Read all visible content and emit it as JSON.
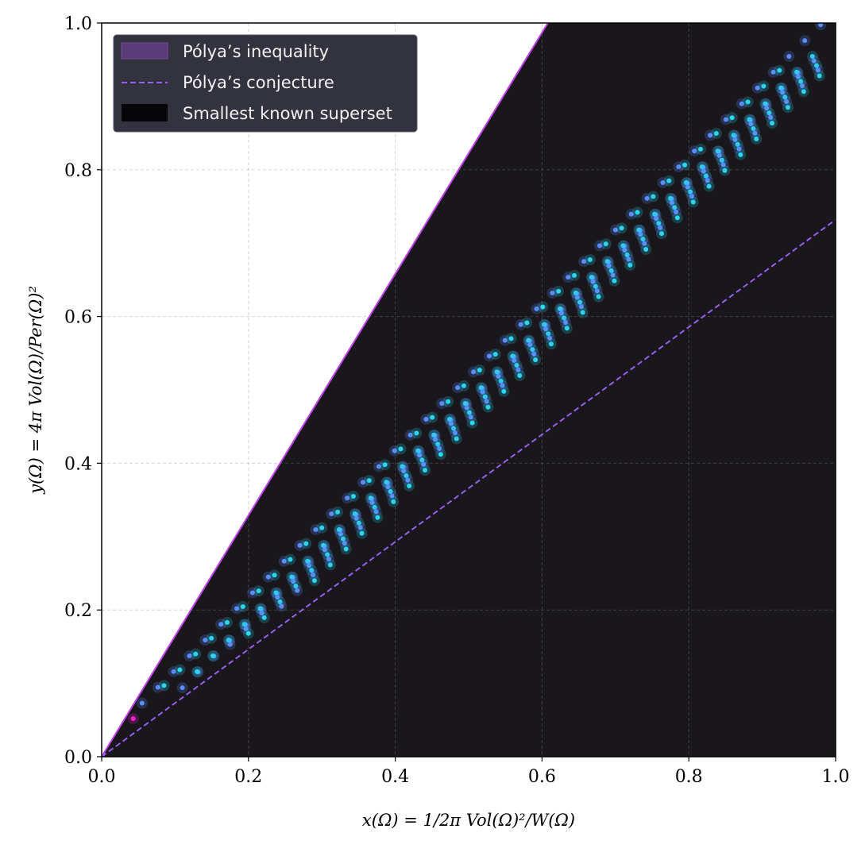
{
  "chart_data": {
    "type": "scatter",
    "xlabel": "x(Ω) = 1/2π Vol(Ω)²/W(Ω)",
    "ylabel": "y(Ω) = 4π Vol(Ω)/Per(Ω)²",
    "xlim": [
      0.0,
      1.0
    ],
    "ylim": [
      0.0,
      1.0
    ],
    "x_ticks": [
      "0.0",
      "0.2",
      "0.4",
      "0.6",
      "0.8",
      "1.0"
    ],
    "y_ticks": [
      "0.0",
      "0.2",
      "0.4",
      "0.6",
      "0.8",
      "1.0"
    ],
    "grid": true,
    "legend_position": "top-left",
    "legend": [
      {
        "label": "Pólya’s inequality",
        "kind": "patch",
        "color": "#5b3a7a"
      },
      {
        "label": "Pólya’s conjecture",
        "kind": "dashed-line",
        "color": "#9b5cf0"
      },
      {
        "label": "Smallest known superset",
        "kind": "patch",
        "color": "#060608"
      }
    ],
    "polya_inequality_line": {
      "slope": 1.645,
      "color": "#c040f0"
    },
    "polya_conjecture_line": {
      "slope": 0.732,
      "color": "#9b5cf0"
    },
    "superset_region_color": "#19171b",
    "point_rows": [
      {
        "x_start": 0.043,
        "y_start": 0.052,
        "color": "#ff1fd0",
        "count": 1,
        "dx": 0.0,
        "dy": 0.0
      },
      {
        "x_start": 0.055,
        "y_start": 0.073,
        "color": "#5b8cff",
        "count": 44,
        "dx": 0.0215,
        "dy": 0.0215
      },
      {
        "x_start": 0.085,
        "y_start": 0.097,
        "color": "#2ad6f0",
        "count": 40,
        "dx": 0.0215,
        "dy": 0.0215
      },
      {
        "x_start": 0.11,
        "y_start": 0.094,
        "color": "#5b8cff",
        "count": 40,
        "dx": 0.0215,
        "dy": 0.0215
      },
      {
        "x_start": 0.13,
        "y_start": 0.116,
        "color": "#2ad6f0",
        "count": 40,
        "dx": 0.0215,
        "dy": 0.0215
      },
      {
        "x_start": 0.175,
        "y_start": 0.153,
        "color": "#5b8cff",
        "count": 38,
        "dx": 0.0215,
        "dy": 0.0215
      },
      {
        "x_start": 0.2,
        "y_start": 0.168,
        "color": "#2ad6f0",
        "count": 37,
        "dx": 0.0215,
        "dy": 0.0215
      },
      {
        "x_start": 0.245,
        "y_start": 0.205,
        "color": "#5b8cff",
        "count": 35,
        "dx": 0.0215,
        "dy": 0.0215
      },
      {
        "x_start": 0.29,
        "y_start": 0.24,
        "color": "#2ad6f0",
        "count": 33,
        "dx": 0.0215,
        "dy": 0.0215
      }
    ]
  }
}
